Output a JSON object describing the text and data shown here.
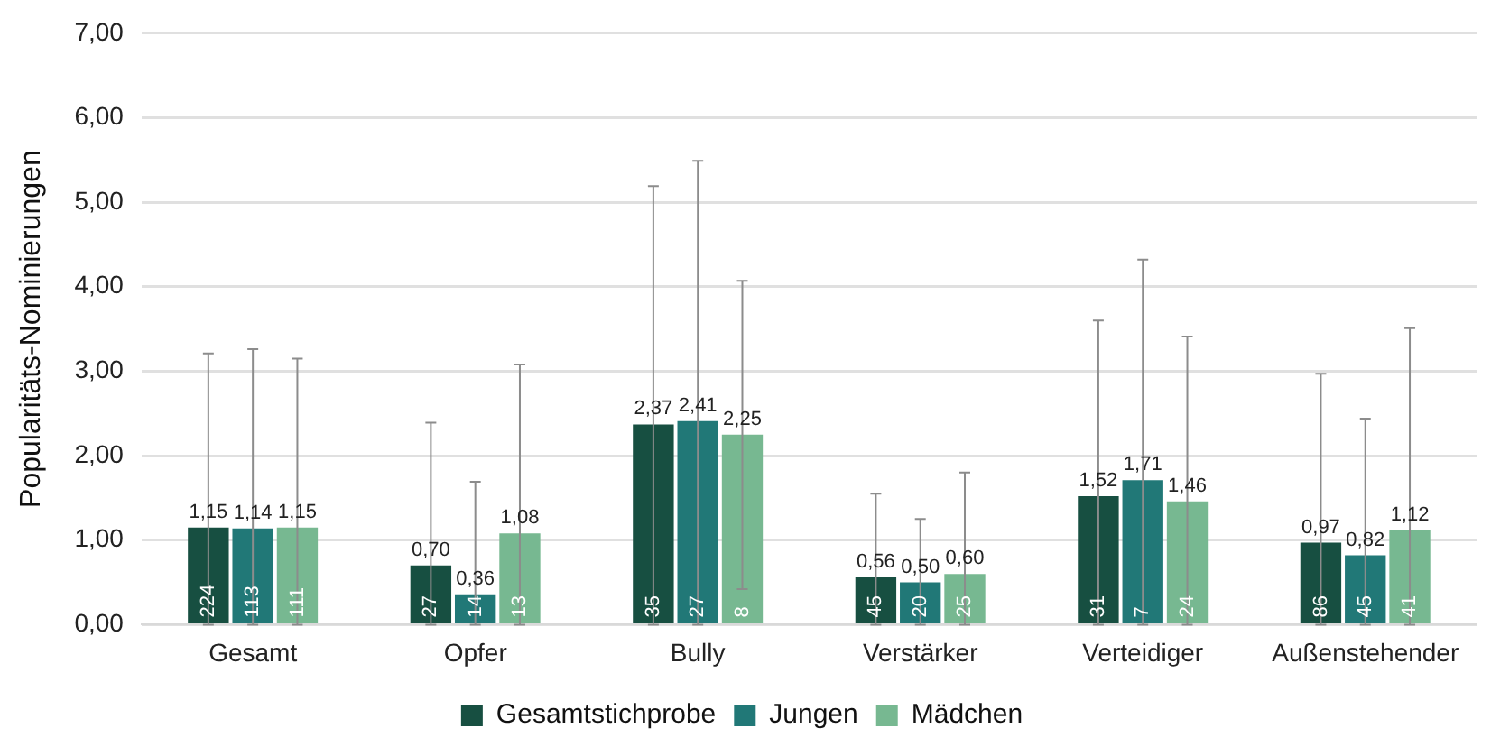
{
  "chart_data": {
    "type": "bar",
    "ylabel": "Popularitäts-Nominierungen",
    "categories": [
      "Gesamt",
      "Opfer",
      "Bully",
      "Verstärker",
      "Verteidiger",
      "Außenstehender"
    ],
    "series": [
      {
        "name": "Gesamtstichprobe",
        "color": "#174f41",
        "values": [
          1.15,
          0.7,
          2.37,
          0.56,
          1.52,
          0.97
        ],
        "value_labels": [
          "1,15",
          "0,70",
          "2,37",
          "0,56",
          "1,52",
          "0,97"
        ],
        "errors": [
          [
            0,
            3.21
          ],
          [
            0,
            2.39
          ],
          [
            0,
            5.19
          ],
          [
            0,
            1.55
          ],
          [
            0,
            3.6
          ],
          [
            0,
            2.97
          ]
        ]
      },
      {
        "name": "Jungen",
        "color": "#217877",
        "values": [
          1.14,
          0.36,
          2.41,
          0.5,
          1.71,
          0.82
        ],
        "value_labels": [
          "1,14",
          "0,36",
          "2,41",
          "0,50",
          "1,71",
          "0,82"
        ],
        "errors": [
          [
            0,
            3.26
          ],
          [
            0,
            1.69
          ],
          [
            0,
            5.49
          ],
          [
            0,
            1.25
          ],
          [
            0,
            4.32
          ],
          [
            0,
            2.44
          ]
        ]
      },
      {
        "name": "Mädchen",
        "color": "#77b891",
        "values": [
          1.15,
          1.08,
          2.25,
          0.6,
          1.46,
          1.12
        ],
        "value_labels": [
          "1,15",
          "1,08",
          "2,25",
          "0,60",
          "1,46",
          "1,12"
        ],
        "errors": [
          [
            0,
            3.15
          ],
          [
            0,
            3.08
          ],
          [
            0.42,
            4.07
          ],
          [
            0,
            1.8
          ],
          [
            0,
            3.41
          ],
          [
            0,
            3.51
          ]
        ]
      }
    ],
    "annotations": [
      {
        "text": "224",
        "x": "Gesamt",
        "y": 0
      },
      {
        "text": "113",
        "x": "Gesamt",
        "y": 0
      },
      {
        "text": "111",
        "x": "Gesamt",
        "y": 0
      },
      {
        "text": "27",
        "x": "Opfer",
        "y": 0
      },
      {
        "text": "14",
        "x": "Opfer",
        "y": 0
      },
      {
        "text": "13",
        "x": "Opfer",
        "y": 0
      },
      {
        "text": "35",
        "x": "Bully",
        "y": 0
      },
      {
        "text": "27",
        "x": "Bully",
        "y": 0
      },
      {
        "text": "8",
        "x": "Bully",
        "y": 0
      },
      {
        "text": "45",
        "x": "Verstärker",
        "y": 0
      },
      {
        "text": "20",
        "x": "Verstärker",
        "y": 0
      },
      {
        "text": "25",
        "x": "Verstärker",
        "y": 0
      },
      {
        "text": "31",
        "x": "Verteidiger",
        "y": 0
      },
      {
        "text": "7",
        "x": "Verteidiger",
        "y": 0
      },
      {
        "text": "24",
        "x": "Verteidiger",
        "y": 0
      },
      {
        "text": "86",
        "x": "Außenstehender",
        "y": 0
      },
      {
        "text": "45",
        "x": "Außenstehender",
        "y": 0
      },
      {
        "text": "41",
        "x": "Außenstehender",
        "y": 0
      }
    ],
    "ylim": [
      0,
      7
    ],
    "yticks": [
      {
        "value": 0,
        "label": "0,00"
      },
      {
        "value": 1,
        "label": "1,00"
      },
      {
        "value": 2,
        "label": "2,00"
      },
      {
        "value": 3,
        "label": "3,00"
      },
      {
        "value": 4,
        "label": "4,00"
      },
      {
        "value": 5,
        "label": "5,00"
      },
      {
        "value": 6,
        "label": "6,00"
      },
      {
        "value": 7,
        "label": "7,00"
      }
    ],
    "grid": "y",
    "legend": "bottom"
  }
}
